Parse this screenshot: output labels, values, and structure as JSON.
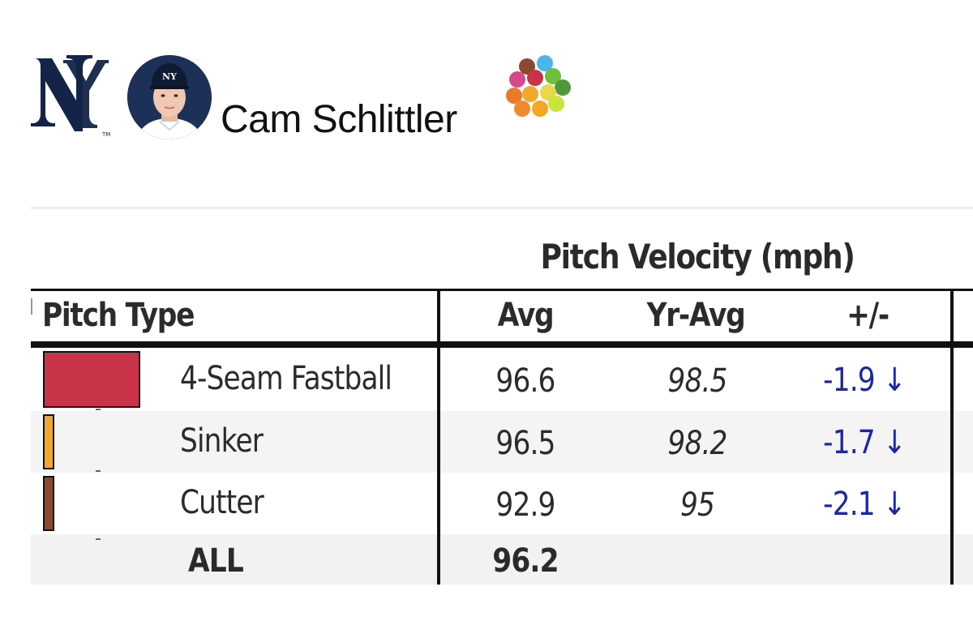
{
  "header": {
    "team_logo_text": "NY",
    "player_name": "Cam Schlittler"
  },
  "table": {
    "title": "Pitch Velocity (mph)",
    "columns": {
      "pitch_type": "Pitch Type",
      "avg": "Avg",
      "yr_avg": "Yr-Avg",
      "diff": "+/-"
    },
    "rows": [
      {
        "name": "4-Seam Fastball",
        "avg": "96.6",
        "yr_avg": "98.5",
        "diff": "-1.9 ↓",
        "usage": 1.0,
        "color": "#c8334a"
      },
      {
        "name": "Sinker",
        "avg": "96.5",
        "yr_avg": "98.2",
        "diff": "-1.7 ↓",
        "usage": 0.12,
        "color": "#f0a830"
      },
      {
        "name": "Cutter",
        "avg": "92.9",
        "yr_avg": "95",
        "diff": "-2.1 ↓",
        "usage": 0.12,
        "color": "#8b4a2f"
      }
    ],
    "total": {
      "label": "ALL",
      "avg": "96.2"
    }
  }
}
